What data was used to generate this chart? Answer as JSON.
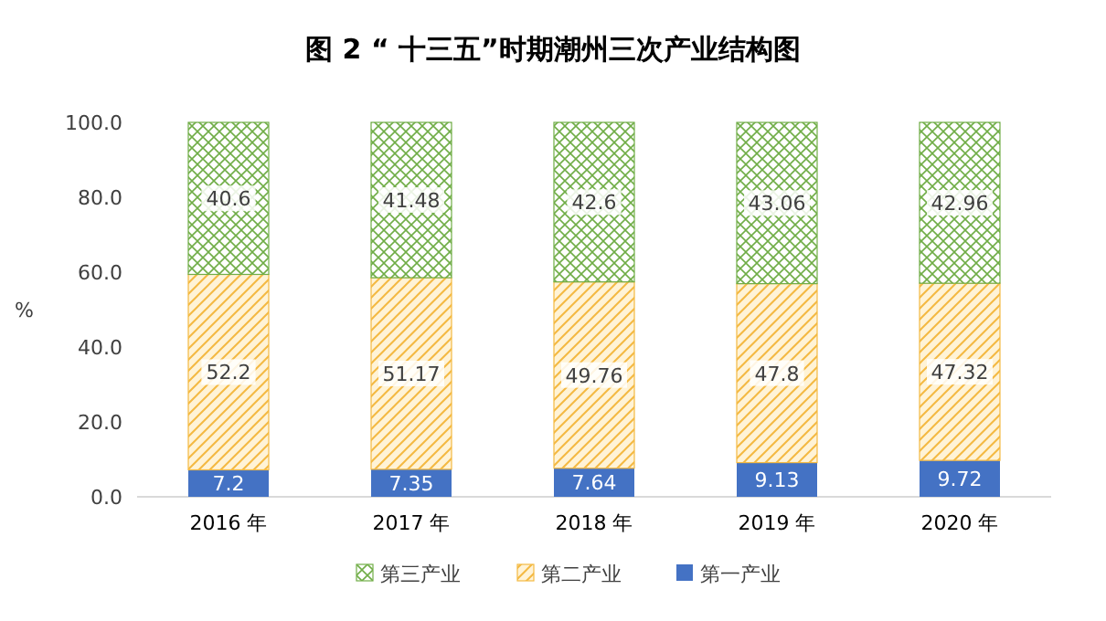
{
  "chart_data": {
    "type": "bar",
    "title": "图 2 “ 十三五”时期潮州三次产业结构图",
    "ylabel": "%",
    "stacked": true,
    "data_labels": true,
    "legend": "bottom",
    "categories": [
      "2016 年",
      "2017 年",
      "2018 年",
      "2019 年",
      "2020 年"
    ],
    "ylim": [
      0,
      100
    ],
    "yticks": [
      {
        "value": 0,
        "label": "0.0"
      },
      {
        "value": 20,
        "label": "20.0"
      },
      {
        "value": 40,
        "label": "40.0"
      },
      {
        "value": 60,
        "label": "60.0"
      },
      {
        "value": 80,
        "label": "80.0"
      },
      {
        "value": 100,
        "label": "100.0"
      }
    ],
    "series": [
      {
        "name": "第一产业",
        "color": "#4472c4",
        "values": [
          7.2,
          7.35,
          7.64,
          9.13,
          9.72
        ]
      },
      {
        "name": "第二产业",
        "color": "#f4b942",
        "values": [
          52.2,
          51.17,
          49.76,
          47.8,
          47.32
        ]
      },
      {
        "name": "第三产业",
        "color": "#70ad47",
        "values": [
          40.6,
          41.48,
          42.6,
          43.06,
          42.96
        ]
      }
    ]
  }
}
